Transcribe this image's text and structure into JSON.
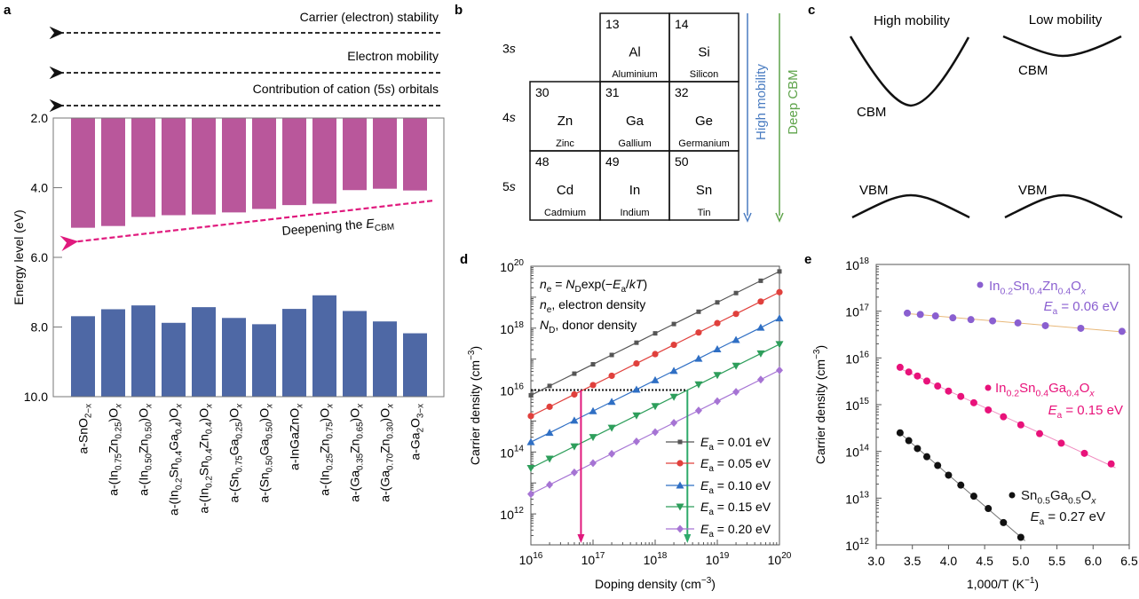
{
  "panels": {
    "a": {
      "letter": "a"
    },
    "b": {
      "letter": "b"
    },
    "c": {
      "letter": "c"
    },
    "d": {
      "letter": "d"
    },
    "e": {
      "letter": "e"
    }
  },
  "chart_data": [
    {
      "id": "a",
      "type": "bar",
      "title": "",
      "ylabel": "Energy level (eV)",
      "xlabel": "",
      "ylim": [
        10.0,
        2.0
      ],
      "y_inverted": true,
      "yticks": [
        "2.0",
        "4.0",
        "6.0",
        "8.0",
        "10.0"
      ],
      "ytick_values": [
        2,
        4,
        6,
        8,
        10
      ],
      "categories": [
        {
          "pre": "a-SnO",
          "parts": [
            [
              "sub",
              "2−x"
            ]
          ]
        },
        {
          "pre": "a-(In",
          "parts": [
            [
              "sub",
              "0.75"
            ],
            [
              "t",
              "Zn"
            ],
            [
              "sub",
              "0.25"
            ],
            [
              "t",
              ")O"
            ],
            [
              "sub",
              "x"
            ]
          ]
        },
        {
          "pre": "a-(In",
          "parts": [
            [
              "sub",
              "0.50"
            ],
            [
              "t",
              "Zn"
            ],
            [
              "sub",
              "0.50"
            ],
            [
              "t",
              ")O"
            ],
            [
              "sub",
              "x"
            ]
          ]
        },
        {
          "pre": "a-(In",
          "parts": [
            [
              "sub",
              "0.2"
            ],
            [
              "t",
              "Sn"
            ],
            [
              "sub",
              "0.4"
            ],
            [
              "t",
              "Ga"
            ],
            [
              "sub",
              "0.4"
            ],
            [
              "t",
              ")O"
            ],
            [
              "sub",
              "x"
            ]
          ]
        },
        {
          "pre": "a-(In",
          "parts": [
            [
              "sub",
              "0.2"
            ],
            [
              "t",
              "Sn"
            ],
            [
              "sub",
              "0.4"
            ],
            [
              "t",
              "Zn"
            ],
            [
              "sub",
              "0.4"
            ],
            [
              "t",
              ")O"
            ],
            [
              "sub",
              "x"
            ]
          ]
        },
        {
          "pre": "a-(Sn",
          "parts": [
            [
              "sub",
              "0.75"
            ],
            [
              "t",
              "Ga"
            ],
            [
              "sub",
              "0.25"
            ],
            [
              "t",
              ")O"
            ],
            [
              "sub",
              "x"
            ]
          ]
        },
        {
          "pre": "a-(Sn",
          "parts": [
            [
              "sub",
              "0.50"
            ],
            [
              "t",
              "Ga"
            ],
            [
              "sub",
              "0.50"
            ],
            [
              "t",
              ")O"
            ],
            [
              "sub",
              "x"
            ]
          ]
        },
        {
          "pre": "a-InGaZnO",
          "parts": [
            [
              "sub",
              "x"
            ]
          ]
        },
        {
          "pre": "a-(In",
          "parts": [
            [
              "sub",
              "0.25"
            ],
            [
              "t",
              "Zn"
            ],
            [
              "sub",
              "0.75"
            ],
            [
              "t",
              ")O"
            ],
            [
              "sub",
              "x"
            ]
          ]
        },
        {
          "pre": "a-(Ga",
          "parts": [
            [
              "sub",
              "0.35"
            ],
            [
              "t",
              "Zn"
            ],
            [
              "sub",
              "0.65"
            ],
            [
              "t",
              ")O"
            ],
            [
              "sub",
              "x"
            ]
          ]
        },
        {
          "pre": "a-(Ga",
          "parts": [
            [
              "sub",
              "0.70"
            ],
            [
              "t",
              "Zn"
            ],
            [
              "sub",
              "0.30"
            ],
            [
              "t",
              ")O"
            ],
            [
              "sub",
              "x"
            ]
          ]
        },
        {
          "pre": "a-Ga",
          "parts": [
            [
              "sub",
              "2"
            ],
            [
              "t",
              "O"
            ],
            [
              "sub",
              "3−x"
            ]
          ]
        }
      ],
      "series": [
        {
          "name": "Conduction band minimum (CBM)",
          "color": "#b9579b",
          "from": 2.0,
          "values": [
            5.15,
            5.1,
            4.84,
            4.79,
            4.77,
            4.71,
            4.61,
            4.5,
            4.46,
            4.07,
            4.03,
            4.08
          ]
        },
        {
          "name": "Valence band maximum (VBM)",
          "color": "#4e68a5",
          "to": 10.0,
          "values": [
            7.69,
            7.49,
            7.38,
            7.88,
            7.43,
            7.74,
            7.92,
            7.48,
            7.09,
            7.54,
            7.84,
            8.18
          ]
        }
      ],
      "annotations": {
        "top_arrows": [
          {
            "label": "Carrier (electron) stability",
            "direction": "left"
          },
          {
            "label": "Electron mobility",
            "direction": "left"
          },
          {
            "label": "Contribution of cation (5s) orbitals",
            "label_pre": "Contribution of cation (5",
            "label_italic": "s",
            "label_post": ") orbitals",
            "direction": "left"
          }
        ],
        "trend_arrow": {
          "label_pre": "Deepening the ",
          "label_italic": "E",
          "label_sub": "CBM",
          "color": "#e0197d",
          "from_eV": 4.4,
          "to_eV": 5.6
        }
      }
    },
    {
      "id": "b",
      "type": "table",
      "title": "",
      "row_labels": [
        [
          "3",
          "s"
        ],
        [
          "4",
          "s"
        ],
        [
          "5",
          "s"
        ]
      ],
      "cells": [
        [
          null,
          {
            "number": "13",
            "symbol": "Al",
            "name": "Aluminium"
          },
          {
            "number": "14",
            "symbol": "Si",
            "name": "Silicon"
          }
        ],
        [
          {
            "number": "30",
            "symbol": "Zn",
            "name": "Zinc"
          },
          {
            "number": "31",
            "symbol": "Ga",
            "name": "Gallium"
          },
          {
            "number": "32",
            "symbol": "Ge",
            "name": "Germanium"
          }
        ],
        [
          {
            "number": "48",
            "symbol": "Cd",
            "name": "Cadmium"
          },
          {
            "number": "49",
            "symbol": "In",
            "name": "Indium"
          },
          {
            "number": "50",
            "symbol": "Sn",
            "name": "Tin"
          }
        ]
      ],
      "arrows": [
        {
          "label": "High mobility",
          "color": "#4a7cc1",
          "direction": "down"
        },
        {
          "label": "Deep CBM",
          "color": "#5ea34a",
          "direction": "down"
        }
      ]
    },
    {
      "id": "c",
      "type": "diagram",
      "columns": [
        {
          "title": "High mobility",
          "cbm_label": "CBM",
          "vbm_label": "VBM",
          "cbm_curvature": "high"
        },
        {
          "title": "Low mobility",
          "cbm_label": "CBM",
          "vbm_label": "VBM",
          "cbm_curvature": "low"
        }
      ]
    },
    {
      "id": "d",
      "type": "line",
      "xscale": "log",
      "yscale": "log",
      "xlabel_pre": "Doping density (cm",
      "xlabel_sup": "−3",
      "xlabel_post": ")",
      "ylabel_pre": "Carrier density (cm",
      "ylabel_sup": "−3",
      "ylabel_post": ")",
      "xlim": [
        1e+16,
        1e+20
      ],
      "ylim": [
        100000000000.0,
        1e+20
      ],
      "xticks": [
        16,
        17,
        18,
        19,
        20
      ],
      "yticks": [
        12,
        14,
        16,
        18,
        20
      ],
      "x": [
        1e+16,
        2e+16,
        5e+16,
        1e+17,
        2e+17,
        5e+17,
        1e+18,
        2e+18,
        5e+18,
        1e+19,
        2e+19,
        5e+19,
        1e+20
      ],
      "kT_eV": 0.02585,
      "equation": {
        "line1": {
          "a": "n",
          "a_sub": "e",
          "b": " = ",
          "c": "N",
          "c_sub": "D",
          "d": "exp(−",
          "e": "E",
          "e_sub": "a",
          "f": "/",
          "g": "kT",
          "h": ")"
        },
        "line2": {
          "a": "n",
          "a_sub": "e",
          "rest": ", electron density"
        },
        "line3": {
          "a": "N",
          "a_sub": "D",
          "rest": ", donor density"
        }
      },
      "series": [
        {
          "name": "Ea = 0.01 eV",
          "value_label": " = 0.01 eV",
          "Ea": 0.01,
          "color": "#555555",
          "marker": "square",
          "values": [
            6790000000000000.0,
            1.36e+16,
            3.39e+16,
            6.79e+16,
            1.36e+17,
            3.39e+17,
            6.79e+17,
            1.36e+18,
            3.39e+18,
            6.79e+18,
            1.36e+19,
            3.39e+19,
            6.79e+19
          ]
        },
        {
          "name": "Ea = 0.05 eV",
          "value_label": " = 0.05 eV",
          "Ea": 0.05,
          "color": "#e0403c",
          "marker": "circle",
          "values": [
            1450000000000000.0,
            2890000000000000.0,
            7230000000000000.0,
            1.45e+16,
            2.89e+16,
            7.23e+16,
            1.45e+17,
            2.89e+17,
            7.23e+17,
            1.45e+18,
            2.89e+18,
            7.23e+18,
            1.45e+19
          ]
        },
        {
          "name": "Ea = 0.10 eV",
          "value_label": " = 0.10 eV",
          "Ea": 0.1,
          "color": "#2f6fc4",
          "marker": "triangle-up",
          "values": [
            209000000000000.0,
            418000000000000.0,
            1040000000000000.0,
            2090000000000000.0,
            4180000000000000.0,
            1.04e+16,
            2.09e+16,
            4.18e+16,
            1.04e+17,
            2.09e+17,
            4.18e+17,
            1.04e+18,
            2.09e+18
          ]
        },
        {
          "name": "Ea = 0.15 eV",
          "value_label": " = 0.15 eV",
          "Ea": 0.15,
          "color": "#2e9e5b",
          "marker": "triangle-down",
          "values": [
            30200000000000.0,
            60400000000000.0,
            151000000000000.0,
            302000000000000.0,
            604000000000000.0,
            1510000000000000.0,
            3020000000000000.0,
            6040000000000000.0,
            1.51e+16,
            3.02e+16,
            6.04e+16,
            1.51e+17,
            3.02e+17
          ]
        },
        {
          "name": "Ea = 0.20 eV",
          "value_label": " = 0.20 eV",
          "Ea": 0.2,
          "color": "#a674d4",
          "marker": "diamond",
          "values": [
            4370000000000.0,
            8740000000000.0,
            21800000000000.0,
            43700000000000.0,
            87400000000000.0,
            218000000000000.0,
            437000000000000.0,
            874000000000000.0,
            2180000000000000.0,
            4370000000000000.0,
            8740000000000000.0,
            2.18e+16,
            4.37e+16
          ]
        }
      ],
      "legend": "bottom-right",
      "guide": {
        "y": 1e+16,
        "x_end": 3.3e+18,
        "style": "dotted"
      },
      "drop_arrows": [
        {
          "x": 6.4e+16,
          "color": "#e0197d"
        },
        {
          "x": 3.3e+18,
          "color": "#2eaa6a"
        }
      ]
    },
    {
      "id": "e",
      "type": "scatter",
      "yscale": "log",
      "xlabel_pre": "1,000/T (K",
      "xlabel_sup": "−1",
      "xlabel_post": ")",
      "ylabel_pre": "Carrier density (cm",
      "ylabel_sup": "−3",
      "ylabel_post": ")",
      "xlim": [
        3.0,
        6.5
      ],
      "ylim": [
        1000000000000.0,
        1e+18
      ],
      "xticks": [
        "3.0",
        "3.5",
        "4.0",
        "4.5",
        "5.0",
        "5.5",
        "6.0",
        "6.5"
      ],
      "xtick_values": [
        3.0,
        3.5,
        4.0,
        4.5,
        5.0,
        5.5,
        6.0,
        6.5
      ],
      "yticks": [
        12,
        13,
        14,
        15,
        16,
        17,
        18
      ],
      "series": [
        {
          "name": "In0.2Sn0.4Zn0.4Ox",
          "label_parts": [
            [
              "t",
              "In"
            ],
            [
              "sub",
              "0.2"
            ],
            [
              "t",
              "Sn"
            ],
            [
              "sub",
              "0.4"
            ],
            [
              "t",
              "Zn"
            ],
            [
              "sub",
              "0.4"
            ],
            [
              "t",
              "O"
            ],
            [
              "subi",
              "x"
            ]
          ],
          "ea_label": " = 0.06 eV",
          "Ea": 0.06,
          "color": "#8a5fd0",
          "fit_color": "#e8b87a",
          "x": [
            3.43,
            3.61,
            3.82,
            4.06,
            4.31,
            4.61,
            4.96,
            5.34,
            5.83,
            6.4
          ],
          "y": [
            9.1e+16,
            8.5e+16,
            7.9e+16,
            7.2e+16,
            6.6e+16,
            6.2e+16,
            5.6e+16,
            4.9e+16,
            4.3e+16,
            3.7e+16
          ]
        },
        {
          "name": "In0.2Sn0.4Ga0.4Ox",
          "label_parts": [
            [
              "t",
              "In"
            ],
            [
              "sub",
              "0.2"
            ],
            [
              "t",
              "Sn"
            ],
            [
              "sub",
              "0.4"
            ],
            [
              "t",
              "Ga"
            ],
            [
              "sub",
              "0.4"
            ],
            [
              "t",
              "O"
            ],
            [
              "subi",
              "x"
            ]
          ],
          "ea_label": " = 0.15 eV",
          "Ea": 0.15,
          "color": "#e8127a",
          "fit_color": "#f08cc0",
          "x": [
            3.33,
            3.45,
            3.57,
            3.7,
            3.85,
            4.0,
            4.17,
            4.35,
            4.55,
            4.76,
            5.0,
            5.26,
            5.56,
            5.88,
            6.25
          ],
          "y": [
            6300000000000000.0,
            5000000000000000.0,
            4100000000000000.0,
            3200000000000000.0,
            2500000000000000.0,
            1950000000000000.0,
            1500000000000000.0,
            1100000000000000.0,
            770000000000000.0,
            550000000000000.0,
            370000000000000.0,
            240000000000000.0,
            150000000000000.0,
            91000000000000.0,
            54000000000000.0
          ]
        },
        {
          "name": "Sn0.5Ga0.5Ox",
          "label_parts": [
            [
              "t",
              "Sn"
            ],
            [
              "sub",
              "0.5"
            ],
            [
              "t",
              "Ga"
            ],
            [
              "sub",
              "0.5"
            ],
            [
              "t",
              "O"
            ],
            [
              "subi",
              "x"
            ]
          ],
          "ea_label": " = 0.27 eV",
          "Ea": 0.27,
          "color": "#111111",
          "fit_color": "#777777",
          "x": [
            3.33,
            3.45,
            3.57,
            3.7,
            3.85,
            4.0,
            4.17,
            4.35,
            4.55,
            4.76,
            5.0
          ],
          "y": [
            250000000000000.0,
            170000000000000.0,
            115000000000000.0,
            77000000000000.0,
            50000000000000.0,
            31000000000000.0,
            19000000000000.0,
            11000000000000.0,
            6000000000000.0,
            3000000000000.0,
            1450000000000.0
          ]
        }
      ]
    }
  ]
}
